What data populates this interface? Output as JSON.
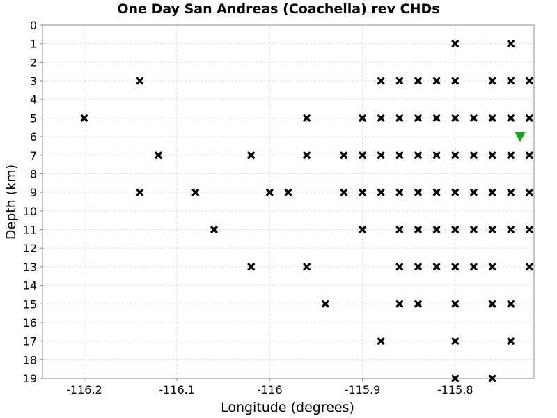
{
  "chart_data": {
    "type": "scatter",
    "title": "One Day San Andreas (Coachella) rev CHDs",
    "xlabel": "Longitude (degrees)",
    "ylabel": "Depth (km)",
    "xlim": [
      -116.245,
      -115.715
    ],
    "ylim": [
      0,
      19
    ],
    "y_inverted": true,
    "grid": true,
    "x_ticks": [
      "-116.2",
      "-116.1",
      "-116",
      "-115.9",
      "-115.8"
    ],
    "x_tick_values": [
      -116.2,
      -116.1,
      -116.0,
      -115.9,
      -115.8
    ],
    "y_ticks": [
      "0",
      "1",
      "2",
      "3",
      "4",
      "5",
      "6",
      "7",
      "8",
      "9",
      "10",
      "11",
      "12",
      "13",
      "14",
      "15",
      "16",
      "17",
      "18",
      "19"
    ],
    "series": [
      {
        "marker": "x",
        "color": "#000000",
        "points": [
          [
            -115.8,
            1
          ],
          [
            -115.74,
            1
          ],
          [
            -116.14,
            3
          ],
          [
            -115.88,
            3
          ],
          [
            -115.86,
            3
          ],
          [
            -115.84,
            3
          ],
          [
            -115.82,
            3
          ],
          [
            -115.8,
            3
          ],
          [
            -115.76,
            3
          ],
          [
            -115.74,
            3
          ],
          [
            -115.72,
            3
          ],
          [
            -116.2,
            5
          ],
          [
            -115.96,
            5
          ],
          [
            -115.9,
            5
          ],
          [
            -115.88,
            5
          ],
          [
            -115.86,
            5
          ],
          [
            -115.84,
            5
          ],
          [
            -115.82,
            5
          ],
          [
            -115.8,
            5
          ],
          [
            -115.78,
            5
          ],
          [
            -115.76,
            5
          ],
          [
            -115.74,
            5
          ],
          [
            -115.72,
            5
          ],
          [
            -116.12,
            7
          ],
          [
            -116.02,
            7
          ],
          [
            -115.96,
            7
          ],
          [
            -115.92,
            7
          ],
          [
            -115.9,
            7
          ],
          [
            -115.88,
            7
          ],
          [
            -115.86,
            7
          ],
          [
            -115.84,
            7
          ],
          [
            -115.82,
            7
          ],
          [
            -115.8,
            7
          ],
          [
            -115.78,
            7
          ],
          [
            -115.76,
            7
          ],
          [
            -115.74,
            7
          ],
          [
            -115.72,
            7
          ],
          [
            -116.14,
            9
          ],
          [
            -116.08,
            9
          ],
          [
            -116.0,
            9
          ],
          [
            -115.98,
            9
          ],
          [
            -115.92,
            9
          ],
          [
            -115.9,
            9
          ],
          [
            -115.88,
            9
          ],
          [
            -115.86,
            9
          ],
          [
            -115.84,
            9
          ],
          [
            -115.82,
            9
          ],
          [
            -115.8,
            9
          ],
          [
            -115.78,
            9
          ],
          [
            -115.76,
            9
          ],
          [
            -115.74,
            9
          ],
          [
            -115.72,
            9
          ],
          [
            -116.06,
            11
          ],
          [
            -115.9,
            11
          ],
          [
            -115.86,
            11
          ],
          [
            -115.84,
            11
          ],
          [
            -115.82,
            11
          ],
          [
            -115.8,
            11
          ],
          [
            -115.78,
            11
          ],
          [
            -115.76,
            11
          ],
          [
            -115.74,
            11
          ],
          [
            -115.72,
            11
          ],
          [
            -116.02,
            13
          ],
          [
            -115.96,
            13
          ],
          [
            -115.86,
            13
          ],
          [
            -115.84,
            13
          ],
          [
            -115.82,
            13
          ],
          [
            -115.8,
            13
          ],
          [
            -115.78,
            13
          ],
          [
            -115.76,
            13
          ],
          [
            -115.72,
            13
          ],
          [
            -115.94,
            15
          ],
          [
            -115.86,
            15
          ],
          [
            -115.84,
            15
          ],
          [
            -115.8,
            15
          ],
          [
            -115.76,
            15
          ],
          [
            -115.74,
            15
          ],
          [
            -115.88,
            17
          ],
          [
            -115.8,
            17
          ],
          [
            -115.74,
            17
          ],
          [
            -115.8,
            19
          ],
          [
            -115.76,
            19
          ]
        ]
      },
      {
        "marker": "triangle-down",
        "color": "#1aa81a",
        "points": [
          [
            -115.73,
            6
          ]
        ]
      }
    ]
  }
}
